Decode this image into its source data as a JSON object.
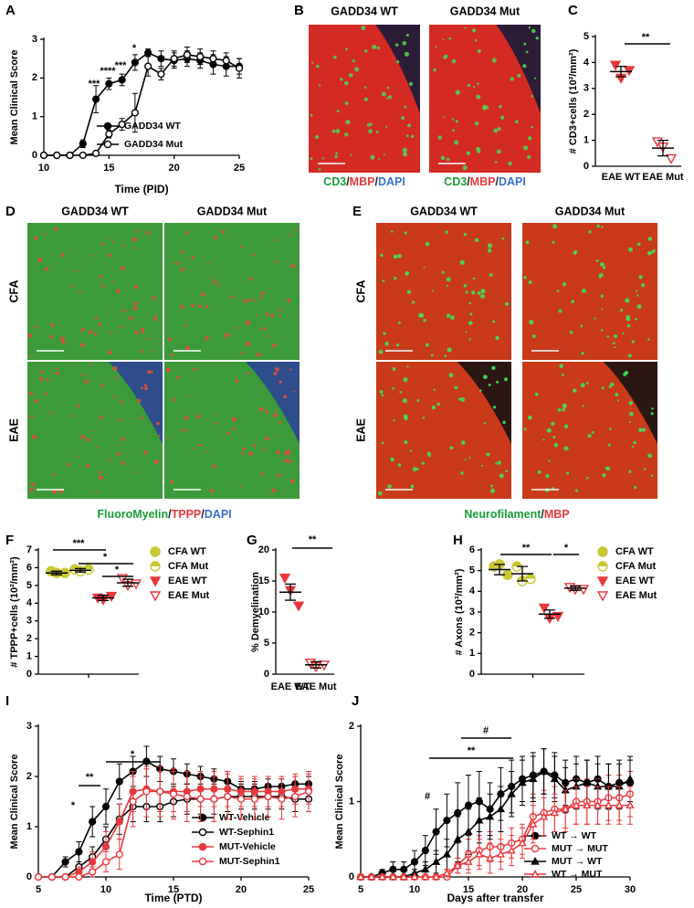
{
  "chart_data": [
    {
      "type": "line",
      "panel_label": "A",
      "xlabel": "Time (PID)",
      "ylabel": "Mean Clinical Score",
      "xlim": [
        10,
        25
      ],
      "xticks": [
        10,
        15,
        20,
        25
      ],
      "ylim": [
        0,
        3
      ],
      "yticks": [
        0,
        1,
        2,
        3
      ],
      "x": [
        10,
        11,
        12,
        13,
        14,
        15,
        16,
        17,
        18,
        19,
        20,
        21,
        22,
        23,
        24,
        25
      ],
      "series": [
        {
          "name": "GADD34 WT",
          "color": "#000000",
          "marker": "circle",
          "fill": "solid",
          "values": [
            0,
            0,
            0,
            0.3,
            1.45,
            1.85,
            1.95,
            2.4,
            2.65,
            2.5,
            2.45,
            2.5,
            2.45,
            2.35,
            2.3,
            2.3
          ],
          "errors": [
            0,
            0,
            0,
            0.1,
            0.35,
            0.15,
            0.15,
            0.2,
            0.1,
            0.2,
            0.2,
            0.2,
            0.2,
            0.25,
            0.25,
            0.2
          ]
        },
        {
          "name": "GADD34 Mut",
          "color": "#000000",
          "marker": "circle",
          "fill": "open",
          "values": [
            0,
            0,
            0,
            0,
            0.05,
            0.55,
            0.8,
            1.1,
            2.3,
            2.1,
            2.5,
            2.6,
            2.55,
            2.5,
            2.45,
            2.25
          ],
          "errors": [
            0,
            0,
            0,
            0,
            0.05,
            0.1,
            0.15,
            0.5,
            0.25,
            0.15,
            0.2,
            0.2,
            0.2,
            0.2,
            0.2,
            0.25
          ]
        }
      ],
      "annotations": [
        "***",
        "****",
        "***",
        "*"
      ]
    },
    {
      "type": "dot",
      "panel_label": "C",
      "ylabel": "# CD3+cells (10²/mm²)",
      "ylim": [
        0,
        5
      ],
      "yticks": [
        0,
        1,
        2,
        3,
        4,
        5
      ],
      "categories": [
        "EAE WT",
        "EAE Mut"
      ],
      "series": [
        {
          "color": "#e8383d",
          "marker": "triangle-down",
          "fill": "solid",
          "points": [
            3.9,
            3.4,
            3.7
          ],
          "mean": 3.65,
          "sem": 0.2
        },
        {
          "color": "#e8383d",
          "marker": "triangle-down",
          "fill": "open",
          "points": [
            0.95,
            0.75,
            0.3
          ],
          "mean": 0.7,
          "sem": 0.3
        }
      ],
      "annotations": [
        "**"
      ]
    },
    {
      "type": "dot",
      "panel_label": "F",
      "ylabel": "# TPPP+cells (10²/mm²)",
      "ylim": [
        0,
        7
      ],
      "yticks": [
        0,
        1,
        2,
        3,
        4,
        5,
        6,
        7
      ],
      "series": [
        {
          "name": "CFA WT",
          "color": "#c8c832",
          "marker": "circle",
          "fill": "solid",
          "points": [
            5.8,
            5.7,
            5.7
          ],
          "mean": 5.7,
          "sem": 0.1
        },
        {
          "name": "CFA Mut",
          "color": "#c8c832",
          "marker": "circle",
          "fill": "half",
          "points": [
            5.9,
            5.8,
            5.9
          ],
          "mean": 5.85,
          "sem": 0.1
        },
        {
          "name": "EAE WT",
          "color": "#e8383d",
          "marker": "triangle-down",
          "fill": "solid",
          "points": [
            4.3,
            4.2,
            4.4
          ],
          "mean": 4.3,
          "sem": 0.15
        },
        {
          "name": "EAE Mut",
          "color": "#e8383d",
          "marker": "triangle-down",
          "fill": "open",
          "points": [
            5.4,
            5.0,
            5.1
          ],
          "mean": 5.15,
          "sem": 0.2
        }
      ],
      "annotations": [
        "***",
        "*",
        "*"
      ]
    },
    {
      "type": "dot",
      "panel_label": "G",
      "ylabel": "% Demyelination",
      "ylim": [
        0,
        20
      ],
      "yticks": [
        0,
        5,
        10,
        15,
        20
      ],
      "categories": [
        "EAE WT",
        "EAE Mut"
      ],
      "series": [
        {
          "color": "#e8383d",
          "marker": "triangle-down",
          "fill": "solid",
          "points": [
            15.5,
            13.5,
            11
          ],
          "mean": 13.2,
          "sem": 1.3
        },
        {
          "color": "#e8383d",
          "marker": "triangle-down",
          "fill": "open",
          "points": [
            1.8,
            1.2,
            1.5
          ],
          "mean": 1.5,
          "sem": 0.5
        }
      ],
      "annotations": [
        "**"
      ]
    },
    {
      "type": "dot",
      "panel_label": "H",
      "ylabel": "# Axons (10³/mm²)",
      "ylim": [
        0,
        6
      ],
      "yticks": [
        0,
        1,
        2,
        3,
        4,
        5,
        6
      ],
      "series": [
        {
          "name": "CFA WT",
          "color": "#c8c832",
          "marker": "circle",
          "fill": "solid",
          "points": [
            5.2,
            5.3,
            4.8
          ],
          "mean": 5.05,
          "sem": 0.25
        },
        {
          "name": "CFA Mut",
          "color": "#c8c832",
          "marker": "circle",
          "fill": "half",
          "points": [
            5.2,
            4.5,
            4.6
          ],
          "mean": 4.85,
          "sem": 0.35
        },
        {
          "name": "EAE WT",
          "color": "#e8383d",
          "marker": "triangle-down",
          "fill": "solid",
          "points": [
            3.2,
            2.7,
            2.8
          ],
          "mean": 2.9,
          "sem": 0.2
        },
        {
          "name": "EAE Mut",
          "color": "#e8383d",
          "marker": "triangle-down",
          "fill": "open",
          "points": [
            4.2,
            4.1,
            4.1
          ],
          "mean": 4.15,
          "sem": 0.1
        }
      ],
      "annotations": [
        "**",
        "*"
      ]
    },
    {
      "type": "line",
      "panel_label": "I",
      "xlabel": "Time (PTD)",
      "ylabel": "Mean Clinical Score",
      "xlim": [
        5,
        25
      ],
      "xticks": [
        5,
        10,
        15,
        20,
        25
      ],
      "ylim": [
        0,
        3
      ],
      "yticks": [
        0,
        1,
        2,
        3
      ],
      "x": [
        5,
        6,
        7,
        8,
        9,
        10,
        11,
        12,
        13,
        14,
        15,
        16,
        17,
        18,
        19,
        20,
        21,
        22,
        23,
        24,
        25
      ],
      "series": [
        {
          "name": "WT-Vehicle",
          "color": "#000000",
          "marker": "circle",
          "fill": "solid",
          "values": [
            0,
            0,
            0.3,
            0.5,
            1.1,
            1.4,
            1.9,
            2.1,
            2.3,
            2.15,
            2.1,
            2.05,
            2.0,
            1.95,
            1.9,
            1.75,
            1.75,
            1.8,
            1.8,
            1.85,
            1.85
          ],
          "errors": [
            0,
            0,
            0.1,
            0.2,
            0.3,
            0.35,
            0.35,
            0.3,
            0.3,
            0.25,
            0.25,
            0.2,
            0.2,
            0.2,
            0.2,
            0.15,
            0.15,
            0.15,
            0.15,
            0.15,
            0.15
          ]
        },
        {
          "name": "WT-Sephin1",
          "color": "#000000",
          "marker": "circle",
          "fill": "open",
          "values": [
            0,
            0,
            0,
            0.2,
            0.4,
            0.75,
            1.15,
            1.4,
            1.4,
            1.4,
            1.5,
            1.55,
            1.55,
            1.55,
            1.6,
            1.6,
            1.6,
            1.6,
            1.6,
            1.55,
            1.55
          ],
          "errors": [
            0,
            0,
            0,
            0.1,
            0.2,
            0.25,
            0.3,
            0.3,
            0.3,
            0.3,
            0.3,
            0.3,
            0.3,
            0.3,
            0.3,
            0.25,
            0.25,
            0.25,
            0.25,
            0.25,
            0.25
          ]
        },
        {
          "name": "MUT-Vehicle",
          "color": "#e8383d",
          "marker": "circle",
          "fill": "solid",
          "values": [
            0,
            0,
            0,
            0.1,
            0.3,
            0.6,
            1.1,
            1.7,
            1.75,
            1.7,
            1.7,
            1.7,
            1.75,
            1.75,
            1.75,
            1.7,
            1.7,
            1.7,
            1.7,
            1.75,
            1.75
          ],
          "errors": [
            0,
            0,
            0,
            0.1,
            0.2,
            0.3,
            0.35,
            0.4,
            0.4,
            0.4,
            0.4,
            0.4,
            0.35,
            0.35,
            0.35,
            0.3,
            0.3,
            0.3,
            0.3,
            0.3,
            0.3
          ]
        },
        {
          "name": "MUT-Sephin1",
          "color": "#e8383d",
          "marker": "circle",
          "fill": "open",
          "values": [
            0,
            0,
            0,
            0,
            0.1,
            0.3,
            0.45,
            1.5,
            1.7,
            1.7,
            1.65,
            1.6,
            1.55,
            1.55,
            1.6,
            1.55,
            1.55,
            1.6,
            1.55,
            1.6,
            1.7
          ],
          "errors": [
            0,
            0,
            0,
            0,
            0.1,
            0.2,
            0.3,
            0.5,
            0.5,
            0.5,
            0.5,
            0.5,
            0.45,
            0.45,
            0.45,
            0.4,
            0.4,
            0.4,
            0.4,
            0.4,
            0.4
          ]
        }
      ],
      "annotations": [
        "*",
        "**",
        "*"
      ]
    },
    {
      "type": "line",
      "panel_label": "J",
      "xlabel": "Days after transfer",
      "ylabel": "Mean Clinical Score",
      "xlim": [
        5,
        30
      ],
      "xticks": [
        5,
        10,
        15,
        20,
        25,
        30
      ],
      "ylim": [
        0,
        2
      ],
      "yticks": [
        0,
        1,
        2
      ],
      "x": [
        5,
        6,
        7,
        8,
        9,
        10,
        11,
        12,
        13,
        14,
        15,
        16,
        17,
        18,
        19,
        20,
        21,
        22,
        23,
        24,
        25,
        26,
        27,
        28,
        29,
        30
      ],
      "series": [
        {
          "name": "WT → WT",
          "color": "#000000",
          "marker": "circle",
          "fill": "solid",
          "values": [
            0,
            0,
            0.05,
            0.1,
            0.1,
            0.2,
            0.35,
            0.6,
            0.75,
            0.85,
            0.95,
            1.0,
            0.9,
            1.1,
            1.2,
            1.3,
            1.35,
            1.4,
            1.35,
            1.25,
            1.3,
            1.25,
            1.3,
            1.2,
            1.25,
            1.25
          ],
          "errors": [
            0,
            0,
            0.05,
            0.1,
            0.1,
            0.15,
            0.2,
            0.3,
            0.35,
            0.4,
            0.4,
            0.4,
            0.35,
            0.35,
            0.35,
            0.3,
            0.3,
            0.3,
            0.3,
            0.3,
            0.3,
            0.3,
            0.3,
            0.3,
            0.3,
            0.3
          ]
        },
        {
          "name": "MUT → MUT",
          "color": "#e8383d",
          "marker": "circle",
          "fill": "open",
          "values": [
            0,
            0,
            0,
            0,
            0,
            0,
            0,
            0,
            0,
            0.15,
            0.3,
            0.35,
            0.4,
            0.4,
            0.45,
            0.5,
            0.8,
            0.85,
            0.9,
            0.9,
            1.0,
            1.0,
            1.0,
            1.05,
            1.05,
            1.1
          ],
          "errors": [
            0,
            0,
            0,
            0,
            0,
            0,
            0,
            0,
            0,
            0.1,
            0.2,
            0.2,
            0.2,
            0.2,
            0.2,
            0.2,
            0.3,
            0.3,
            0.3,
            0.3,
            0.3,
            0.3,
            0.3,
            0.3,
            0.3,
            0.3
          ]
        },
        {
          "name": "MUT → WT",
          "color": "#000000",
          "marker": "triangle-up",
          "fill": "solid",
          "values": [
            0,
            0,
            0,
            0,
            0,
            0.05,
            0.1,
            0.2,
            0.3,
            0.5,
            0.6,
            0.75,
            0.8,
            0.9,
            1.1,
            1.25,
            1.3,
            1.4,
            1.3,
            1.15,
            1.2,
            1.25,
            1.2,
            1.2,
            1.2,
            1.3
          ],
          "errors": [
            0,
            0,
            0,
            0,
            0,
            0.05,
            0.1,
            0.15,
            0.2,
            0.3,
            0.3,
            0.3,
            0.3,
            0.3,
            0.3,
            0.3,
            0.3,
            0.3,
            0.3,
            0.3,
            0.3,
            0.3,
            0.3,
            0.3,
            0.3,
            0.3
          ]
        },
        {
          "name": "WT → MUT",
          "color": "#e8383d",
          "marker": "triangle-up",
          "fill": "open",
          "values": [
            0,
            0,
            0,
            0,
            0,
            0,
            0,
            0,
            0.05,
            0.15,
            0.2,
            0.3,
            0.25,
            0.3,
            0.35,
            0.45,
            0.7,
            0.8,
            0.85,
            0.9,
            0.95,
            0.95,
            0.95,
            0.95,
            0.95,
            0.95
          ],
          "errors": [
            0,
            0,
            0,
            0,
            0,
            0,
            0,
            0,
            0.05,
            0.1,
            0.15,
            0.2,
            0.2,
            0.2,
            0.2,
            0.2,
            0.25,
            0.25,
            0.25,
            0.25,
            0.25,
            0.25,
            0.25,
            0.25,
            0.25,
            0.25
          ]
        }
      ],
      "annotations": [
        "#",
        "**",
        "#"
      ]
    }
  ],
  "image_panels": [
    {
      "panel_label": "B",
      "columns": [
        "GADD34 WT",
        "GADD34 Mut"
      ],
      "stain": [
        {
          "text": "CD3",
          "color": "#1a9e3a"
        },
        {
          "text": "/",
          "color": "#222222"
        },
        {
          "text": "MBP",
          "color": "#e8383d"
        },
        {
          "text": "/",
          "color": "#222222"
        },
        {
          "text": "DAPI",
          "color": "#3a6fc8"
        }
      ]
    },
    {
      "panel_label": "D",
      "columns": [
        "GADD34 WT",
        "GADD34 Mut"
      ],
      "rows": [
        "CFA",
        "EAE"
      ],
      "stain": [
        {
          "text": "FluoroMyelin",
          "color": "#1a9e3a"
        },
        {
          "text": "/",
          "color": "#222222"
        },
        {
          "text": "TPPP",
          "color": "#e8383d"
        },
        {
          "text": "/",
          "color": "#222222"
        },
        {
          "text": "DAPI",
          "color": "#3a6fc8"
        }
      ]
    },
    {
      "panel_label": "E",
      "columns": [
        "GADD34 WT",
        "GADD34 Mut"
      ],
      "rows": [
        "CFA",
        "EAE"
      ],
      "stain": [
        {
          "text": "Neurofilament",
          "color": "#1a9e3a"
        },
        {
          "text": "/",
          "color": "#222222"
        },
        {
          "text": "MBP",
          "color": "#e8383d"
        }
      ]
    }
  ]
}
